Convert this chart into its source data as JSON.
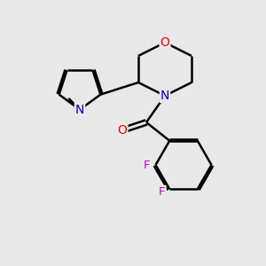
{
  "background_color": "#e8e8e8",
  "bond_color": "#000000",
  "atom_colors": {
    "O": "#ff0000",
    "N": "#0000cc",
    "F": "#cc00cc",
    "C": "#000000"
  },
  "bond_width": 1.8,
  "figsize": [
    3.0,
    3.0
  ],
  "dpi": 100
}
